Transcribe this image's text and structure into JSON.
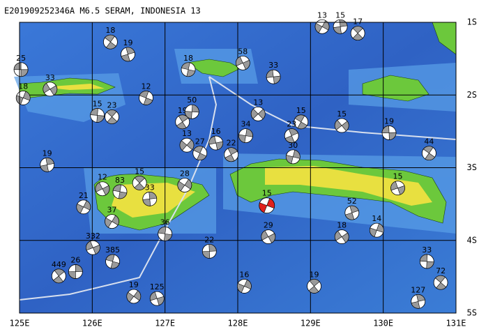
{
  "map": {
    "type": "focal-mechanism-map",
    "title": "E201909252346A  M6.5  SERAM, INDONESIA 13",
    "xlim": [
      125,
      131
    ],
    "ylim": [
      -1,
      -5
    ],
    "xticks": [
      {
        "value": 125,
        "label": "125E"
      },
      {
        "value": 126,
        "label": "126E"
      },
      {
        "value": 127,
        "label": "127E"
      },
      {
        "value": 128,
        "label": "128E"
      },
      {
        "value": 129,
        "label": "129E"
      },
      {
        "value": 130,
        "label": "130E"
      },
      {
        "value": 131,
        "label": "131E"
      }
    ],
    "yticks": [
      {
        "value": -1,
        "label": "1S"
      },
      {
        "value": -2,
        "label": "2S"
      },
      {
        "value": -3,
        "label": "3S"
      },
      {
        "value": -4,
        "label": "4S"
      },
      {
        "value": -5,
        "label": "5S"
      }
    ],
    "grid": true,
    "event_color": "#9a9a9a",
    "main_color": "#e0201c",
    "main_event": {
      "lon": 128.4,
      "lat": -3.52,
      "depth": 15
    },
    "events": [
      {
        "lon": 125.02,
        "lat": -1.65,
        "depth": 25
      },
      {
        "lon": 126.25,
        "lat": -1.27,
        "depth": 18
      },
      {
        "lon": 126.49,
        "lat": -1.44,
        "depth": 19
      },
      {
        "lon": 125.05,
        "lat": -2.04,
        "depth": 18
      },
      {
        "lon": 125.42,
        "lat": -1.92,
        "depth": 33
      },
      {
        "lon": 126.07,
        "lat": -2.28,
        "depth": 15
      },
      {
        "lon": 126.27,
        "lat": -2.3,
        "depth": 23
      },
      {
        "lon": 125.38,
        "lat": -2.96,
        "depth": 19
      },
      {
        "lon": 125.88,
        "lat": -3.54,
        "depth": 21
      },
      {
        "lon": 126.14,
        "lat": -3.29,
        "depth": 12
      },
      {
        "lon": 126.38,
        "lat": -3.33,
        "depth": 83
      },
      {
        "lon": 126.65,
        "lat": -3.21,
        "depth": 15
      },
      {
        "lon": 126.79,
        "lat": -3.43,
        "depth": 33
      },
      {
        "lon": 126.27,
        "lat": -3.74,
        "depth": 37
      },
      {
        "lon": 126.01,
        "lat": -4.1,
        "depth": 332
      },
      {
        "lon": 126.28,
        "lat": -4.29,
        "depth": 385
      },
      {
        "lon": 125.54,
        "lat": -4.49,
        "depth": 449
      },
      {
        "lon": 125.77,
        "lat": -4.43,
        "depth": 26
      },
      {
        "lon": 126.57,
        "lat": -4.77,
        "depth": 19
      },
      {
        "lon": 126.89,
        "lat": -4.8,
        "depth": 125
      },
      {
        "lon": 126.74,
        "lat": -2.04,
        "depth": 12
      },
      {
        "lon": 127.24,
        "lat": -2.37,
        "depth": 19
      },
      {
        "lon": 127.37,
        "lat": -2.23,
        "depth": 50
      },
      {
        "lon": 127.3,
        "lat": -2.69,
        "depth": 13
      },
      {
        "lon": 127.7,
        "lat": -2.66,
        "depth": 16
      },
      {
        "lon": 127.48,
        "lat": -2.8,
        "depth": 27
      },
      {
        "lon": 127.91,
        "lat": -2.82,
        "depth": 22
      },
      {
        "lon": 128.11,
        "lat": -2.56,
        "depth": 34
      },
      {
        "lon": 128.28,
        "lat": -2.26,
        "depth": 13
      },
      {
        "lon": 128.49,
        "lat": -1.75,
        "depth": 33
      },
      {
        "lon": 128.87,
        "lat": -2.37,
        "depth": 15
      },
      {
        "lon": 128.74,
        "lat": -2.56,
        "depth": 23
      },
      {
        "lon": 128.76,
        "lat": -2.85,
        "depth": 30
      },
      {
        "lon": 129.43,
        "lat": -2.42,
        "depth": 15
      },
      {
        "lon": 130.08,
        "lat": -2.52,
        "depth": 19
      },
      {
        "lon": 130.63,
        "lat": -2.8,
        "depth": 44
      },
      {
        "lon": 129.57,
        "lat": -3.62,
        "depth": 52
      },
      {
        "lon": 129.91,
        "lat": -3.86,
        "depth": 14
      },
      {
        "lon": 129.43,
        "lat": -3.95,
        "depth": 18
      },
      {
        "lon": 130.6,
        "lat": -4.29,
        "depth": 33
      },
      {
        "lon": 130.79,
        "lat": -4.58,
        "depth": 72
      },
      {
        "lon": 130.48,
        "lat": -4.84,
        "depth": 127
      },
      {
        "lon": 128.09,
        "lat": -4.63,
        "depth": 16
      },
      {
        "lon": 128.42,
        "lat": -3.95,
        "depth": 29
      },
      {
        "lon": 127.0,
        "lat": -3.91,
        "depth": 36
      },
      {
        "lon": 129.65,
        "lat": -1.15,
        "depth": 17
      },
      {
        "lon": 129.41,
        "lat": -1.06,
        "depth": 15
      },
      {
        "lon": 129.16,
        "lat": -1.06,
        "depth": 13
      },
      {
        "lon": 128.07,
        "lat": -1.56,
        "depth": 58
      },
      {
        "lon": 127.32,
        "lat": -1.65,
        "depth": 18
      },
      {
        "lon": 129.05,
        "lat": -4.63,
        "depth": 19
      },
      {
        "lon": 127.61,
        "lat": -4.15,
        "depth": 22
      },
      {
        "lon": 127.27,
        "lat": -3.24,
        "depth": 28
      },
      {
        "lon": 130.2,
        "lat": -3.28,
        "depth": 15
      }
    ]
  }
}
